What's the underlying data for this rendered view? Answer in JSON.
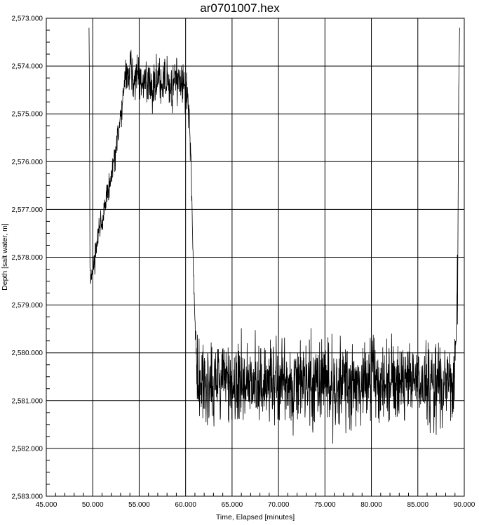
{
  "chart_data": {
    "type": "line",
    "title": "ar0701007.hex",
    "xlabel": "Time, Elapsed [minutes]",
    "ylabel": "Depth [salt water, m]",
    "xlim": [
      45,
      90
    ],
    "ylim": [
      2573,
      2583
    ],
    "y_inverted": true,
    "grid": true,
    "x_ticks": [
      "45.000",
      "50.000",
      "55.000",
      "60.000",
      "65.000",
      "70.000",
      "75.000",
      "80.000",
      "85.000",
      "90.000"
    ],
    "y_ticks": [
      "2,573.000",
      "2,574.000",
      "2,575.000",
      "2,576.000",
      "2,577.000",
      "2,578.000",
      "2,579.000",
      "2,580.000",
      "2,581.000",
      "2,582.000",
      "2,583.000"
    ],
    "series": [
      {
        "color": "#000000",
        "x": [
          49.6,
          49.65,
          49.7,
          49.8,
          50.0,
          50.3,
          50.6,
          51.0,
          51.5,
          52.0,
          52.5,
          53.0,
          53.3,
          53.6,
          54.0,
          54.5,
          55.0,
          55.5,
          56.0,
          56.5,
          57.0,
          57.5,
          58.0,
          58.5,
          59.0,
          59.5,
          60.0,
          60.4,
          60.6,
          60.8,
          61.0,
          61.2,
          61.5,
          62.0,
          63.0,
          64.0,
          65.0,
          66.0,
          67.0,
          68.0,
          69.0,
          70.0,
          71.0,
          72.0,
          73.0,
          74.0,
          75.0,
          76.0,
          77.0,
          78.0,
          79.0,
          80.0,
          81.0,
          82.0,
          83.0,
          84.0,
          85.0,
          86.0,
          87.0,
          88.0,
          89.0,
          89.3,
          89.4,
          89.5
        ],
        "y": [
          2573.2,
          2574.5,
          2578.2,
          2578.5,
          2578.3,
          2577.9,
          2577.6,
          2577.2,
          2576.8,
          2576.3,
          2575.8,
          2575.1,
          2574.6,
          2574.2,
          2574.1,
          2574.3,
          2574.2,
          2574.4,
          2574.3,
          2574.5,
          2574.2,
          2574.4,
          2574.3,
          2574.5,
          2574.3,
          2574.4,
          2574.5,
          2575.0,
          2576.2,
          2578.0,
          2579.4,
          2580.2,
          2580.7,
          2580.6,
          2580.7,
          2580.6,
          2580.7,
          2580.6,
          2580.6,
          2580.7,
          2580.6,
          2580.7,
          2580.6,
          2580.6,
          2580.7,
          2580.6,
          2580.6,
          2580.7,
          2580.6,
          2580.7,
          2580.6,
          2580.6,
          2580.7,
          2580.6,
          2580.7,
          2580.6,
          2580.6,
          2580.7,
          2580.6,
          2580.7,
          2580.6,
          2578.3,
          2574.5,
          2573.2
        ]
      }
    ]
  }
}
